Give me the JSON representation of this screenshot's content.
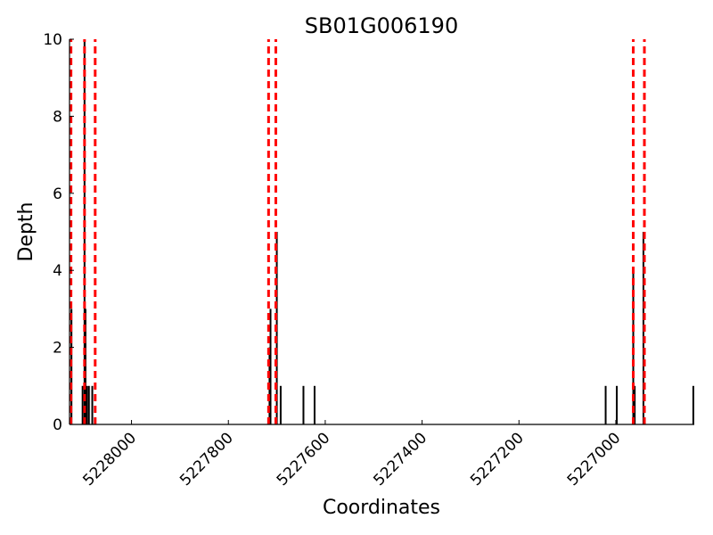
{
  "chart_data": {
    "type": "bar",
    "title": "SB01G006190",
    "xlabel": "Coordinates",
    "ylabel": "Depth",
    "xlim": [
      5228128,
      5226838
    ],
    "ylim": [
      0,
      10
    ],
    "x_reversed": true,
    "xticks": [
      5228000,
      5227800,
      5227600,
      5227400,
      5227200,
      5227000
    ],
    "xtick_labels": [
      "5228000",
      "5227800",
      "5227600",
      "5227400",
      "5227200",
      "5227000"
    ],
    "yticks": [
      0,
      2,
      4,
      6,
      8,
      10
    ],
    "ytick_labels": [
      "0",
      "2",
      "4",
      "6",
      "8",
      "10"
    ],
    "colors": {
      "bars": "#000000",
      "boundaries": "#ff0000"
    },
    "series": [
      {
        "points": [
          {
            "x": 5228124,
            "y": 3
          },
          {
            "x": 5228101,
            "y": 1
          },
          {
            "x": 5228097,
            "y": 10
          },
          {
            "x": 5228095,
            "y": 3
          },
          {
            "x": 5228092,
            "y": 1
          },
          {
            "x": 5228088,
            "y": 1
          },
          {
            "x": 5228081,
            "y": 1
          },
          {
            "x": 5227715,
            "y": 2
          },
          {
            "x": 5227713,
            "y": 3
          },
          {
            "x": 5227700,
            "y": 5
          },
          {
            "x": 5227692,
            "y": 1
          },
          {
            "x": 5227645,
            "y": 1
          },
          {
            "x": 5227622,
            "y": 1
          },
          {
            "x": 5227021,
            "y": 1
          },
          {
            "x": 5226998,
            "y": 1
          },
          {
            "x": 5226964,
            "y": 4
          },
          {
            "x": 5226961,
            "y": 1
          },
          {
            "x": 5226943,
            "y": 5
          },
          {
            "x": 5226840,
            "y": 1
          }
        ]
      }
    ],
    "boundaries": [
      5228125,
      5228097,
      5228075,
      5227717,
      5227702,
      5226964,
      5226941
    ]
  }
}
